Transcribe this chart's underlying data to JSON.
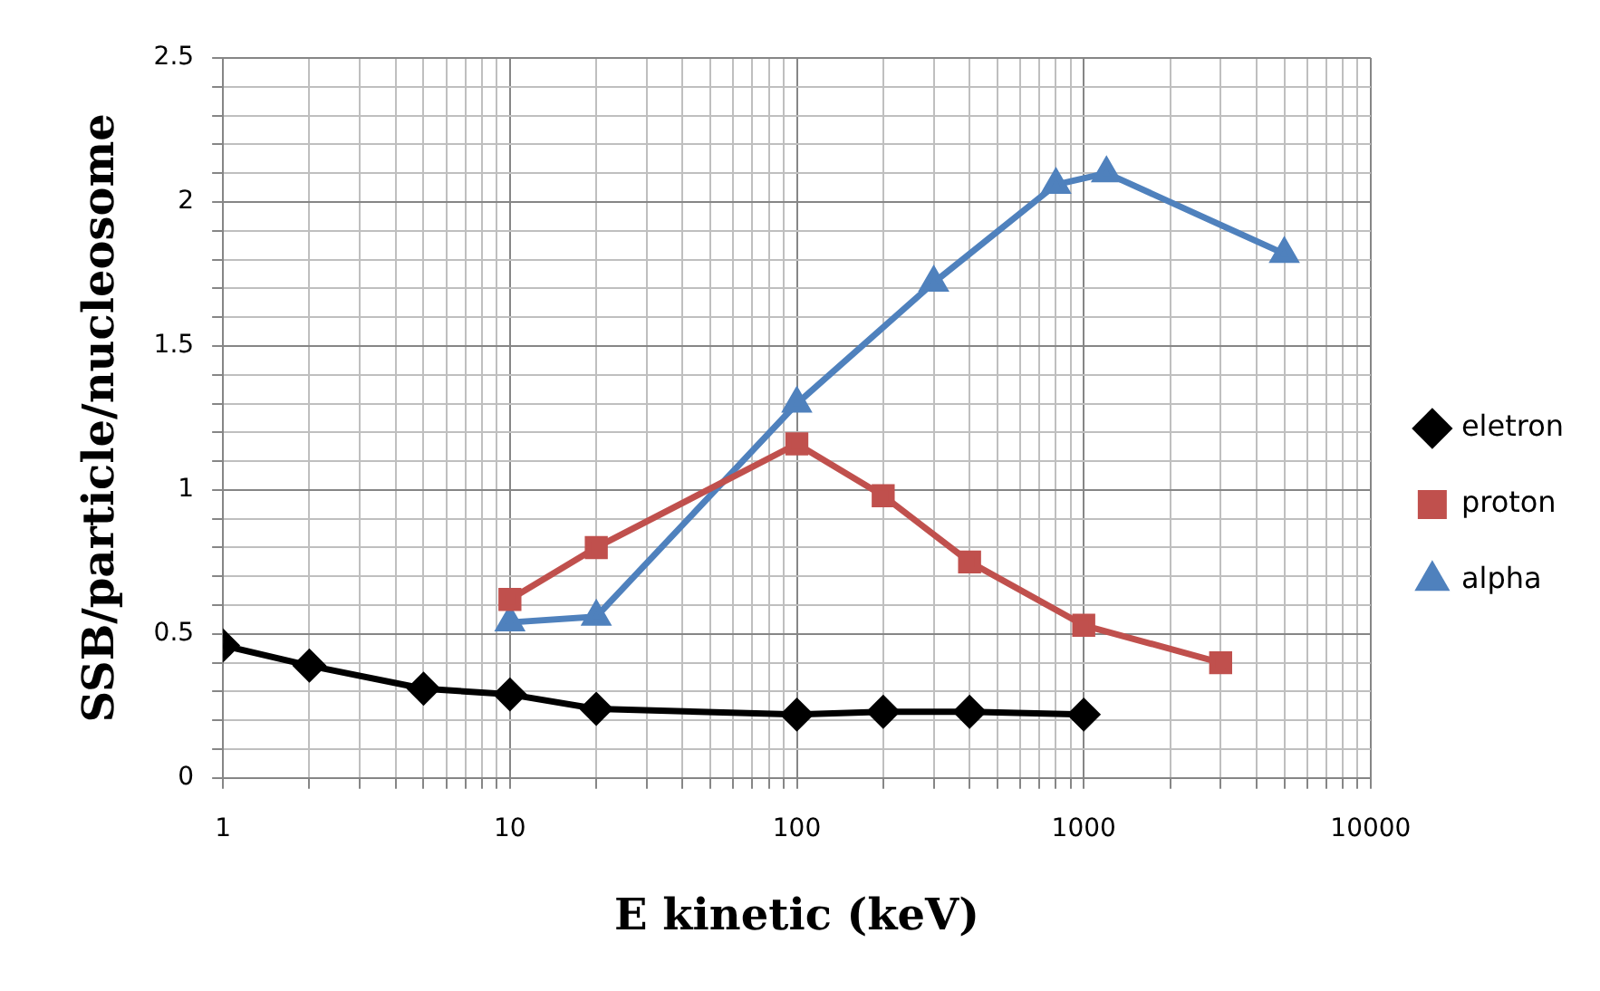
{
  "chart_data": {
    "type": "line",
    "xlabel": "E kinetic (keV)",
    "ylabel": "SSB/particle/nucleosome",
    "log": "x",
    "grid": true,
    "legend": "right",
    "line_style": "solid",
    "xlim": [
      1,
      10000
    ],
    "ylim": [
      0,
      2.5
    ],
    "xticks": [
      1,
      {
        "value": 2,
        "label": null
      },
      {
        "value": 3,
        "label": null
      },
      {
        "value": 4,
        "label": null
      },
      {
        "value": 5,
        "label": null
      },
      {
        "value": 6,
        "label": null
      },
      {
        "value": 7,
        "label": null
      },
      {
        "value": 8,
        "label": null
      },
      {
        "value": 9,
        "label": null
      },
      10,
      {
        "value": 20,
        "label": null
      },
      {
        "value": 30,
        "label": null
      },
      {
        "value": 40,
        "label": null
      },
      {
        "value": 50,
        "label": null
      },
      {
        "value": 60,
        "label": null
      },
      {
        "value": 70,
        "label": null
      },
      {
        "value": 80,
        "label": null
      },
      {
        "value": 90,
        "label": null
      },
      100,
      {
        "value": 200,
        "label": null
      },
      {
        "value": 300,
        "label": null
      },
      {
        "value": 400,
        "label": null
      },
      {
        "value": 500,
        "label": null
      },
      {
        "value": 600,
        "label": null
      },
      {
        "value": 700,
        "label": null
      },
      {
        "value": 800,
        "label": null
      },
      {
        "value": 900,
        "label": null
      },
      1000,
      {
        "value": 2000,
        "label": null
      },
      {
        "value": 3000,
        "label": null
      },
      {
        "value": 4000,
        "label": null
      },
      {
        "value": 5000,
        "label": null
      },
      {
        "value": 6000,
        "label": null
      },
      {
        "value": 7000,
        "label": null
      },
      {
        "value": 8000,
        "label": null
      },
      {
        "value": 9000,
        "label": null
      },
      10000
    ],
    "yticks": [
      0,
      {
        "value": 0.1,
        "label": null
      },
      {
        "value": 0.2,
        "label": null
      },
      {
        "value": 0.3,
        "label": null
      },
      {
        "value": 0.4,
        "label": null
      },
      0.5,
      {
        "value": 0.6,
        "label": null
      },
      {
        "value": 0.7,
        "label": null
      },
      {
        "value": 0.8,
        "label": null
      },
      {
        "value": 0.9,
        "label": null
      },
      1,
      {
        "value": 1.1,
        "label": null
      },
      {
        "value": 1.2,
        "label": null
      },
      {
        "value": 1.3,
        "label": null
      },
      {
        "value": 1.4,
        "label": null
      },
      1.5,
      {
        "value": 1.6,
        "label": null
      },
      {
        "value": 1.7,
        "label": null
      },
      {
        "value": 1.8,
        "label": null
      },
      {
        "value": 1.9,
        "label": null
      },
      2,
      {
        "value": 2.1,
        "label": null
      },
      {
        "value": 2.2,
        "label": null
      },
      {
        "value": 2.3,
        "label": null
      },
      {
        "value": 2.4,
        "label": null
      },
      2.5
    ],
    "series": [
      {
        "name": "eletron",
        "color": "#000000",
        "marker": "diamond",
        "x": [
          1,
          2,
          5,
          10,
          20,
          100,
          200,
          400,
          1000
        ],
        "values": [
          0.46,
          0.39,
          0.31,
          0.29,
          0.24,
          0.22,
          0.23,
          0.23,
          0.22
        ]
      },
      {
        "name": "proton",
        "color": "#c0504d",
        "marker": "square",
        "x": [
          10,
          20,
          100,
          200,
          400,
          1000,
          3000
        ],
        "values": [
          0.62,
          0.8,
          1.16,
          0.98,
          0.75,
          0.53,
          0.4
        ]
      },
      {
        "name": "alpha",
        "color": "#4f81bd",
        "marker": "triangle",
        "x": [
          10,
          20,
          100,
          300,
          800,
          1200,
          5000
        ],
        "values": [
          0.54,
          0.56,
          1.3,
          1.72,
          2.06,
          2.1,
          1.82
        ]
      }
    ]
  }
}
